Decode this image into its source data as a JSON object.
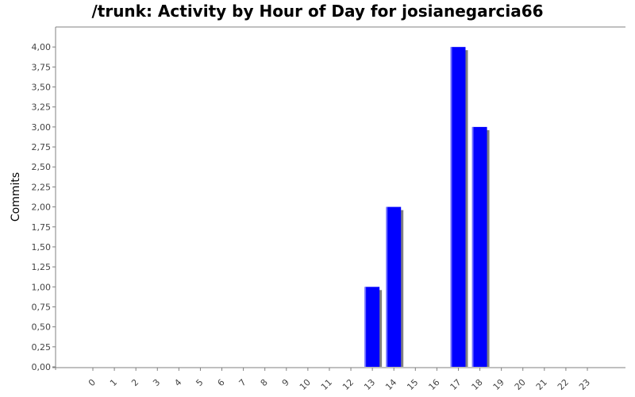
{
  "chart_data": {
    "type": "bar",
    "title": "/trunk: Activity by Hour of Day for josianegarcia66",
    "xlabel": "",
    "ylabel": "Commits",
    "categories": [
      "0",
      "1",
      "2",
      "3",
      "4",
      "5",
      "6",
      "7",
      "8",
      "9",
      "10",
      "11",
      "12",
      "13",
      "14",
      "15",
      "16",
      "17",
      "18",
      "19",
      "20",
      "21",
      "22",
      "23"
    ],
    "values": [
      0,
      0,
      0,
      0,
      0,
      0,
      0,
      0,
      0,
      0,
      0,
      0,
      0,
      1,
      2,
      0,
      0,
      4,
      3,
      0,
      0,
      0,
      0,
      0
    ],
    "ylim": [
      0,
      4.25
    ],
    "yticks": [
      "0,00",
      "0,25",
      "0,50",
      "0,75",
      "1,00",
      "1,25",
      "1,50",
      "1,75",
      "2,00",
      "2,25",
      "2,50",
      "2,75",
      "3,00",
      "3,25",
      "3,50",
      "3,75",
      "4,00"
    ],
    "grid": false,
    "colors": {
      "bar": "#0000ff",
      "bar_highlight": "#6f6fff",
      "bar_shadow": "#808080",
      "axis": "#808080"
    }
  }
}
